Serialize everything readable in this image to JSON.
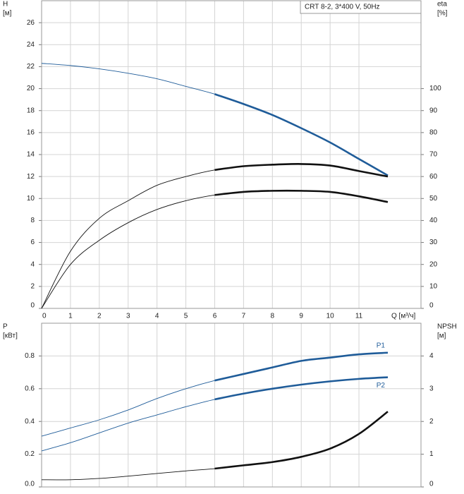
{
  "chart_data": [
    {
      "type": "line",
      "legend_box": "CRT 8-2, 3*400 V, 50Hz",
      "y_label": "H",
      "y_unit": "[м]",
      "y2_label": "eta",
      "y2_unit": "[%]",
      "x_label": "Q [м³/ч]",
      "xlim": [
        0,
        13.15
      ],
      "xticks": [
        0,
        1,
        2,
        3,
        4,
        5,
        6,
        7,
        8,
        9,
        10,
        11
      ],
      "ylim": [
        0,
        28
      ],
      "yticks": [
        0,
        2,
        4,
        6,
        8,
        10,
        12,
        14,
        16,
        18,
        20,
        22,
        24,
        26
      ],
      "y2lim": [
        0,
        140
      ],
      "y2ticks": [
        0,
        10,
        20,
        30,
        40,
        50,
        60,
        70,
        80,
        90,
        100
      ],
      "grid": true,
      "duty_range": [
        6,
        12
      ],
      "x": [
        0,
        1,
        2,
        3,
        4,
        5,
        6,
        7,
        8,
        9,
        10,
        11,
        12
      ],
      "series": [
        {
          "color": "#1f5c99",
          "values": [
            22.3,
            22.1,
            21.8,
            21.4,
            20.9,
            20.2,
            19.5,
            18.6,
            17.6,
            16.4,
            15.1,
            13.6,
            12.1
          ]
        },
        {
          "color": "#111111",
          "axis": "y2",
          "values": [
            0,
            26,
            41,
            49,
            56,
            60,
            63,
            64.7,
            65.4,
            65.7,
            65,
            62.5,
            60
          ]
        },
        {
          "color": "#111111",
          "axis": "y2",
          "values": [
            0,
            20,
            31,
            39,
            45,
            49,
            51.6,
            53,
            53.5,
            53.5,
            53,
            51,
            48.4
          ]
        }
      ]
    },
    {
      "type": "line",
      "y_label": "P",
      "y_unit": "[кВт]",
      "y2_label": "NPSH",
      "y2_unit": "[м]",
      "xlim": [
        0,
        13.15
      ],
      "ylim": [
        0,
        1.0
      ],
      "yticks": [
        {
          "value": 0,
          "label": "0.0"
        },
        0.2,
        0.4,
        0.6,
        0.8
      ],
      "y2lim": [
        0,
        5
      ],
      "y2ticks": [
        0,
        1,
        2,
        3,
        4
      ],
      "grid": true,
      "duty_range": [
        6,
        12
      ],
      "x": [
        0,
        1,
        2,
        3,
        4,
        5,
        6,
        7,
        8,
        9,
        10,
        11,
        12
      ],
      "series": [
        {
          "name": "P1",
          "color": "#1f5c99",
          "values": [
            0.31,
            0.36,
            0.41,
            0.47,
            0.54,
            0.6,
            0.65,
            0.69,
            0.73,
            0.77,
            0.79,
            0.81,
            0.82
          ]
        },
        {
          "name": "P2",
          "color": "#1f5c99",
          "values": [
            0.22,
            0.27,
            0.33,
            0.39,
            0.44,
            0.49,
            0.535,
            0.57,
            0.6,
            0.625,
            0.645,
            0.66,
            0.67
          ]
        },
        {
          "color": "#111111",
          "axis": "y2",
          "values": [
            0.22,
            0.22,
            0.26,
            0.33,
            0.41,
            0.49,
            0.56,
            0.66,
            0.76,
            0.92,
            1.17,
            1.62,
            2.3
          ]
        }
      ]
    }
  ]
}
